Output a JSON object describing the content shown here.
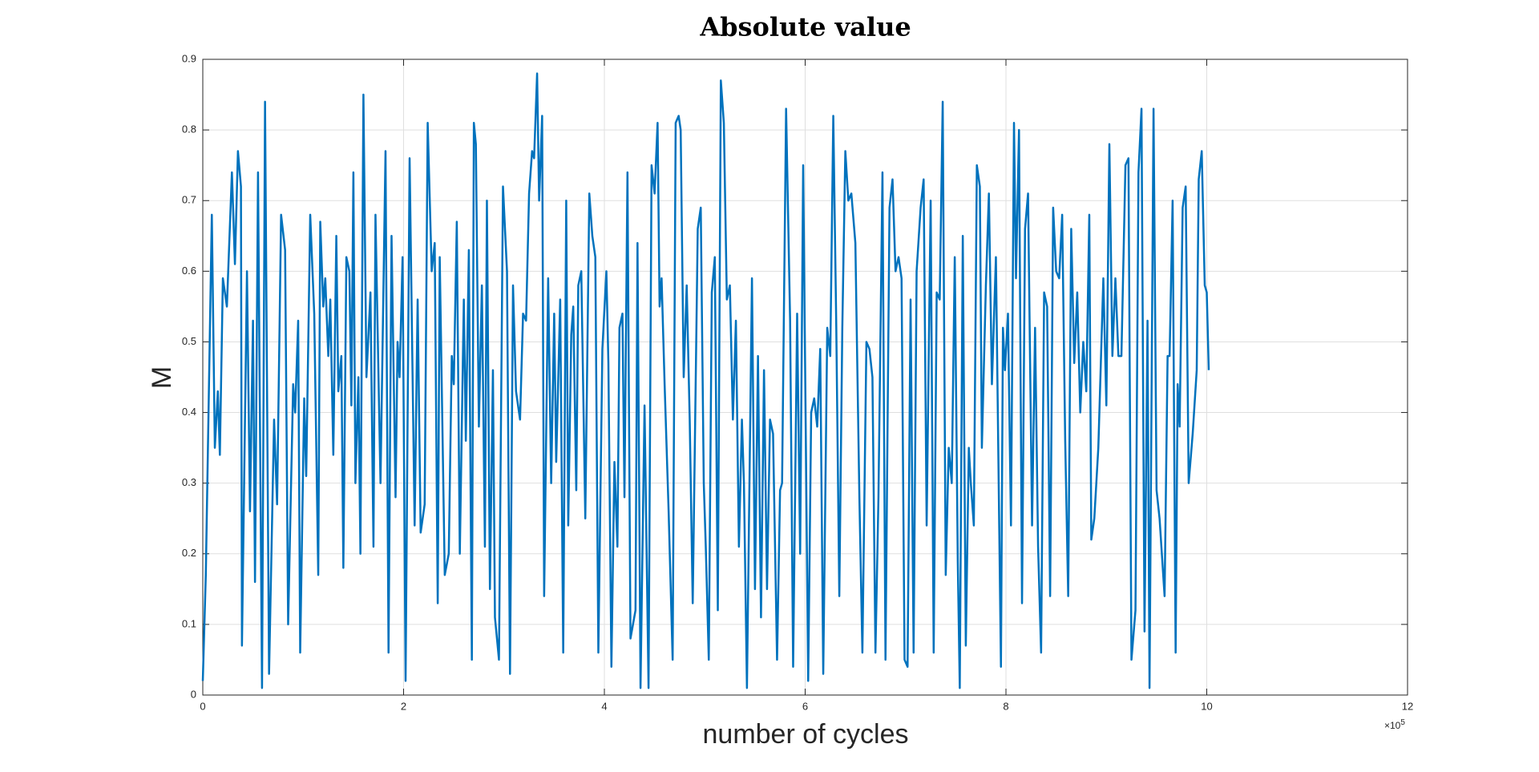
{
  "chart_data": {
    "type": "line",
    "title": "Absolute value",
    "x_label": "number of cycles",
    "y_label": "M",
    "x_multiplier": {
      "base": "×10",
      "exponent": "5"
    },
    "xlim": [
      0,
      12
    ],
    "xticks": [
      0,
      2,
      4,
      6,
      8,
      10,
      12
    ],
    "ylim": [
      0,
      0.9
    ],
    "yticks": [
      0,
      0.1,
      0.2,
      0.3,
      0.4,
      0.5,
      0.6,
      0.7,
      0.8,
      0.9
    ],
    "grid": true,
    "x": [
      0,
      0.03,
      0.09,
      0.12,
      0.15,
      0.17,
      0.2,
      0.24,
      0.29,
      0.32,
      0.35,
      0.38,
      0.39,
      0.44,
      0.47,
      0.5,
      0.52,
      0.55,
      0.59,
      0.62,
      0.66,
      0.71,
      0.74,
      0.78,
      0.82,
      0.85,
      0.9,
      0.92,
      0.95,
      0.97,
      1.01,
      1.03,
      1.07,
      1.11,
      1.15,
      1.17,
      1.2,
      1.22,
      1.25,
      1.27,
      1.3,
      1.33,
      1.35,
      1.38,
      1.4,
      1.43,
      1.46,
      1.48,
      1.5,
      1.52,
      1.55,
      1.57,
      1.6,
      1.63,
      1.67,
      1.7,
      1.72,
      1.77,
      1.82,
      1.85,
      1.88,
      1.92,
      1.94,
      1.96,
      1.99,
      2.02,
      2.06,
      2.11,
      2.14,
      2.17,
      2.21,
      2.24,
      2.28,
      2.31,
      2.34,
      2.36,
      2.41,
      2.45,
      2.48,
      2.5,
      2.53,
      2.56,
      2.6,
      2.62,
      2.65,
      2.68,
      2.7,
      2.72,
      2.75,
      2.78,
      2.81,
      2.83,
      2.86,
      2.89,
      2.91,
      2.95,
      2.99,
      3.03,
      3.06,
      3.09,
      3.12,
      3.16,
      3.19,
      3.22,
      3.25,
      3.28,
      3.3,
      3.33,
      3.35,
      3.38,
      3.4,
      3.44,
      3.47,
      3.5,
      3.52,
      3.56,
      3.59,
      3.62,
      3.64,
      3.67,
      3.69,
      3.72,
      3.74,
      3.77,
      3.81,
      3.85,
      3.88,
      3.91,
      3.94,
      3.98,
      4.02,
      4.04,
      4.07,
      4.1,
      4.13,
      4.15,
      4.18,
      4.2,
      4.23,
      4.26,
      4.31,
      4.33,
      4.36,
      4.4,
      4.44,
      4.47,
      4.5,
      4.53,
      4.55,
      4.57,
      4.6,
      4.64,
      4.68,
      4.71,
      4.74,
      4.76,
      4.79,
      4.82,
      4.85,
      4.88,
      4.93,
      4.96,
      4.99,
      5.01,
      5.04,
      5.07,
      5.1,
      5.13,
      5.16,
      5.19,
      5.22,
      5.25,
      5.28,
      5.31,
      5.34,
      5.37,
      5.39,
      5.42,
      5.47,
      5.5,
      5.53,
      5.56,
      5.59,
      5.62,
      5.65,
      5.68,
      5.72,
      5.75,
      5.77,
      5.81,
      5.85,
      5.88,
      5.92,
      5.95,
      5.98,
      6.03,
      6.06,
      6.09,
      6.12,
      6.15,
      6.18,
      6.22,
      6.25,
      6.28,
      6.31,
      6.34,
      6.37,
      6.4,
      6.43,
      6.46,
      6.5,
      6.54,
      6.57,
      6.61,
      6.64,
      6.67,
      6.7,
      6.73,
      6.77,
      6.8,
      6.84,
      6.87,
      6.9,
      6.93,
      6.96,
      6.99,
      7.02,
      7.05,
      7.08,
      7.11,
      7.15,
      7.18,
      7.21,
      7.25,
      7.28,
      7.31,
      7.34,
      7.37,
      7.4,
      7.43,
      7.46,
      7.49,
      7.52,
      7.54,
      7.57,
      7.6,
      7.63,
      7.65,
      7.68,
      7.71,
      7.74,
      7.76,
      7.8,
      7.83,
      7.86,
      7.9,
      7.95,
      7.97,
      7.99,
      8.02,
      8.05,
      8.08,
      8.1,
      8.13,
      8.16,
      8.19,
      8.22,
      8.26,
      8.29,
      8.32,
      8.35,
      8.38,
      8.41,
      8.44,
      8.47,
      8.5,
      8.53,
      8.56,
      8.59,
      8.62,
      8.65,
      8.68,
      8.71,
      8.74,
      8.77,
      8.8,
      8.83,
      8.85,
      8.88,
      8.92,
      8.97,
      9.0,
      9.03,
      9.06,
      9.09,
      9.12,
      9.15,
      9.19,
      9.22,
      9.25,
      9.29,
      9.32,
      9.35,
      9.38,
      9.41,
      9.43,
      9.47,
      9.5,
      9.53,
      9.58,
      9.61,
      9.63,
      9.66,
      9.69,
      9.71,
      9.73,
      9.76,
      9.79,
      9.82,
      9.86,
      9.9,
      9.92,
      9.95,
      9.98,
      10.0,
      10.02
    ],
    "series": [
      {
        "color": "#0072bd",
        "values": [
          0.02,
          0.17,
          0.68,
          0.35,
          0.43,
          0.34,
          0.59,
          0.55,
          0.74,
          0.61,
          0.77,
          0.72,
          0.07,
          0.6,
          0.26,
          0.53,
          0.16,
          0.74,
          0.01,
          0.84,
          0.03,
          0.39,
          0.27,
          0.68,
          0.63,
          0.1,
          0.44,
          0.4,
          0.53,
          0.06,
          0.42,
          0.31,
          0.68,
          0.54,
          0.17,
          0.67,
          0.55,
          0.59,
          0.48,
          0.56,
          0.34,
          0.65,
          0.43,
          0.48,
          0.18,
          0.62,
          0.6,
          0.41,
          0.74,
          0.3,
          0.45,
          0.2,
          0.85,
          0.45,
          0.57,
          0.21,
          0.68,
          0.3,
          0.77,
          0.06,
          0.65,
          0.28,
          0.5,
          0.45,
          0.62,
          0.02,
          0.76,
          0.24,
          0.56,
          0.23,
          0.27,
          0.81,
          0.6,
          0.64,
          0.13,
          0.62,
          0.17,
          0.2,
          0.48,
          0.44,
          0.67,
          0.2,
          0.56,
          0.36,
          0.63,
          0.05,
          0.81,
          0.78,
          0.38,
          0.58,
          0.21,
          0.7,
          0.15,
          0.46,
          0.11,
          0.05,
          0.72,
          0.6,
          0.03,
          0.58,
          0.43,
          0.39,
          0.54,
          0.53,
          0.71,
          0.77,
          0.76,
          0.88,
          0.7,
          0.82,
          0.14,
          0.59,
          0.3,
          0.54,
          0.33,
          0.56,
          0.06,
          0.7,
          0.24,
          0.51,
          0.55,
          0.29,
          0.58,
          0.6,
          0.25,
          0.71,
          0.65,
          0.62,
          0.06,
          0.49,
          0.6,
          0.47,
          0.04,
          0.33,
          0.21,
          0.52,
          0.54,
          0.28,
          0.74,
          0.08,
          0.12,
          0.64,
          0.01,
          0.41,
          0.01,
          0.75,
          0.71,
          0.81,
          0.55,
          0.59,
          0.44,
          0.26,
          0.05,
          0.81,
          0.82,
          0.8,
          0.45,
          0.58,
          0.39,
          0.13,
          0.66,
          0.69,
          0.3,
          0.21,
          0.05,
          0.57,
          0.62,
          0.12,
          0.87,
          0.81,
          0.56,
          0.58,
          0.39,
          0.53,
          0.21,
          0.39,
          0.3,
          0.01,
          0.59,
          0.15,
          0.48,
          0.11,
          0.46,
          0.15,
          0.39,
          0.37,
          0.05,
          0.29,
          0.3,
          0.83,
          0.53,
          0.04,
          0.54,
          0.2,
          0.75,
          0.02,
          0.4,
          0.42,
          0.38,
          0.49,
          0.03,
          0.52,
          0.48,
          0.82,
          0.52,
          0.14,
          0.52,
          0.77,
          0.7,
          0.71,
          0.64,
          0.28,
          0.06,
          0.5,
          0.49,
          0.45,
          0.06,
          0.28,
          0.74,
          0.05,
          0.69,
          0.73,
          0.6,
          0.62,
          0.59,
          0.05,
          0.04,
          0.56,
          0.06,
          0.6,
          0.69,
          0.73,
          0.24,
          0.7,
          0.06,
          0.57,
          0.56,
          0.84,
          0.17,
          0.35,
          0.3,
          0.62,
          0.19,
          0.01,
          0.65,
          0.07,
          0.35,
          0.3,
          0.24,
          0.75,
          0.72,
          0.35,
          0.58,
          0.71,
          0.44,
          0.62,
          0.04,
          0.52,
          0.46,
          0.54,
          0.24,
          0.81,
          0.59,
          0.8,
          0.13,
          0.66,
          0.71,
          0.24,
          0.52,
          0.21,
          0.06,
          0.57,
          0.55,
          0.14,
          0.69,
          0.6,
          0.59,
          0.68,
          0.36,
          0.14,
          0.66,
          0.47,
          0.57,
          0.4,
          0.5,
          0.43,
          0.68,
          0.22,
          0.25,
          0.35,
          0.59,
          0.41,
          0.78,
          0.48,
          0.59,
          0.48,
          0.48,
          0.75,
          0.76,
          0.05,
          0.12,
          0.74,
          0.83,
          0.09,
          0.53,
          0.01,
          0.83,
          0.29,
          0.25,
          0.14,
          0.48,
          0.48,
          0.7,
          0.06,
          0.44,
          0.38,
          0.69,
          0.72,
          0.3,
          0.37,
          0.46,
          0.73,
          0.77,
          0.58,
          0.57,
          0.46
        ]
      }
    ]
  }
}
